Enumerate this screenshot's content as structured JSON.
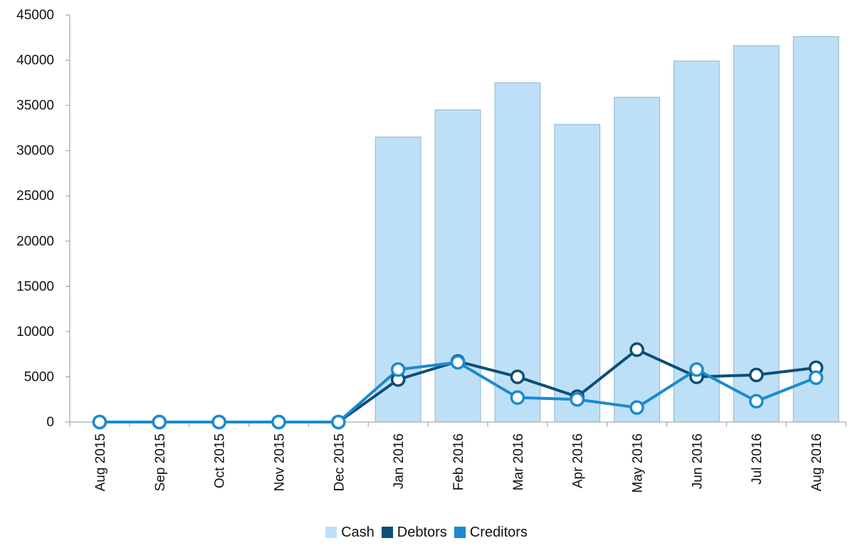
{
  "chart_data": {
    "type": "bar",
    "categories": [
      "Aug 2015",
      "Sep 2015",
      "Oct 2015",
      "Nov 2015",
      "Dec 2015",
      "Jan 2016",
      "Feb 2016",
      "Mar 2016",
      "Apr 2016",
      "May 2016",
      "Jun 2016",
      "Jul 2016",
      "Aug 2016"
    ],
    "series": [
      {
        "name": "Cash",
        "kind": "bar",
        "color": "#bee0f7",
        "values": [
          0,
          0,
          0,
          0,
          0,
          31500,
          34500,
          37500,
          32900,
          35900,
          39900,
          41600,
          42600
        ]
      },
      {
        "name": "Debtors",
        "kind": "line",
        "color": "#0d4e77",
        "values": [
          0,
          0,
          0,
          0,
          0,
          4700,
          6700,
          5000,
          2800,
          8000,
          5000,
          5200,
          6000
        ]
      },
      {
        "name": "Creditors",
        "kind": "line",
        "color": "#1a8ad0",
        "values": [
          0,
          0,
          0,
          0,
          0,
          5800,
          6600,
          2700,
          2500,
          1600,
          5800,
          2300,
          4900
        ]
      }
    ],
    "ylim": [
      0,
      45000
    ],
    "yticks": [
      "0",
      "5000",
      "10000",
      "15000",
      "20000",
      "25000",
      "30000",
      "35000",
      "40000",
      "45000"
    ],
    "grid": false,
    "legend_position": "bottom-center"
  }
}
